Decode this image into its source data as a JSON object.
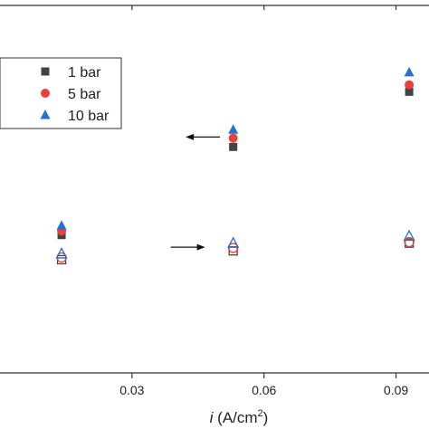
{
  "chart_data": {
    "type": "scatter",
    "xlabel_italic": "i",
    "xlabel_unit": " (A/cm",
    "xlabel_sup": "2",
    "xlabel_close": ")",
    "xlim": [
      0.0,
      0.0975
    ],
    "xticks": [
      0.03,
      0.06,
      0.09
    ],
    "xtick_labels": [
      "0.03",
      "0.06",
      "0.09"
    ],
    "ylim": [
      0,
      100
    ],
    "x": [
      0.014,
      0.053,
      0.093
    ],
    "left_axis_series": [
      {
        "name": "1 bar",
        "marker": "square",
        "color": "#444444",
        "values": [
          37.5,
          61.5,
          76.5
        ]
      },
      {
        "name": "5 bar",
        "marker": "circle",
        "color": "#e8413a",
        "values": [
          38.6,
          63.9,
          78.4
        ]
      },
      {
        "name": "10 bar",
        "marker": "triangle",
        "color": "#2a6fd1",
        "values": [
          40.1,
          66.2,
          81.8
        ]
      }
    ],
    "right_axis_series": [
      {
        "name": "1 bar",
        "marker": "square-open",
        "color": "#444444",
        "values": [
          30.8,
          33.2,
          35.3
        ]
      },
      {
        "name": "5 bar",
        "marker": "circle-open",
        "color": "#e8413a",
        "values": [
          31.4,
          34.0,
          35.6
        ]
      },
      {
        "name": "10 bar",
        "marker": "triangle-open",
        "color": "#2a6fd1",
        "values": [
          32.4,
          35.3,
          37.2
        ]
      }
    ],
    "arrows": [
      {
        "direction": "left",
        "x": 0.05,
        "y": 64.2
      },
      {
        "direction": "right",
        "x": 0.0388,
        "y": 34.2
      }
    ],
    "legend": {
      "placement": "top-left",
      "entries": [
        {
          "label": "1 bar",
          "marker": "square",
          "color": "#444444"
        },
        {
          "label": "5 bar",
          "marker": "circle",
          "color": "#e8413a"
        },
        {
          "label": "10 bar",
          "marker": "triangle",
          "color": "#2a6fd1"
        }
      ]
    }
  }
}
